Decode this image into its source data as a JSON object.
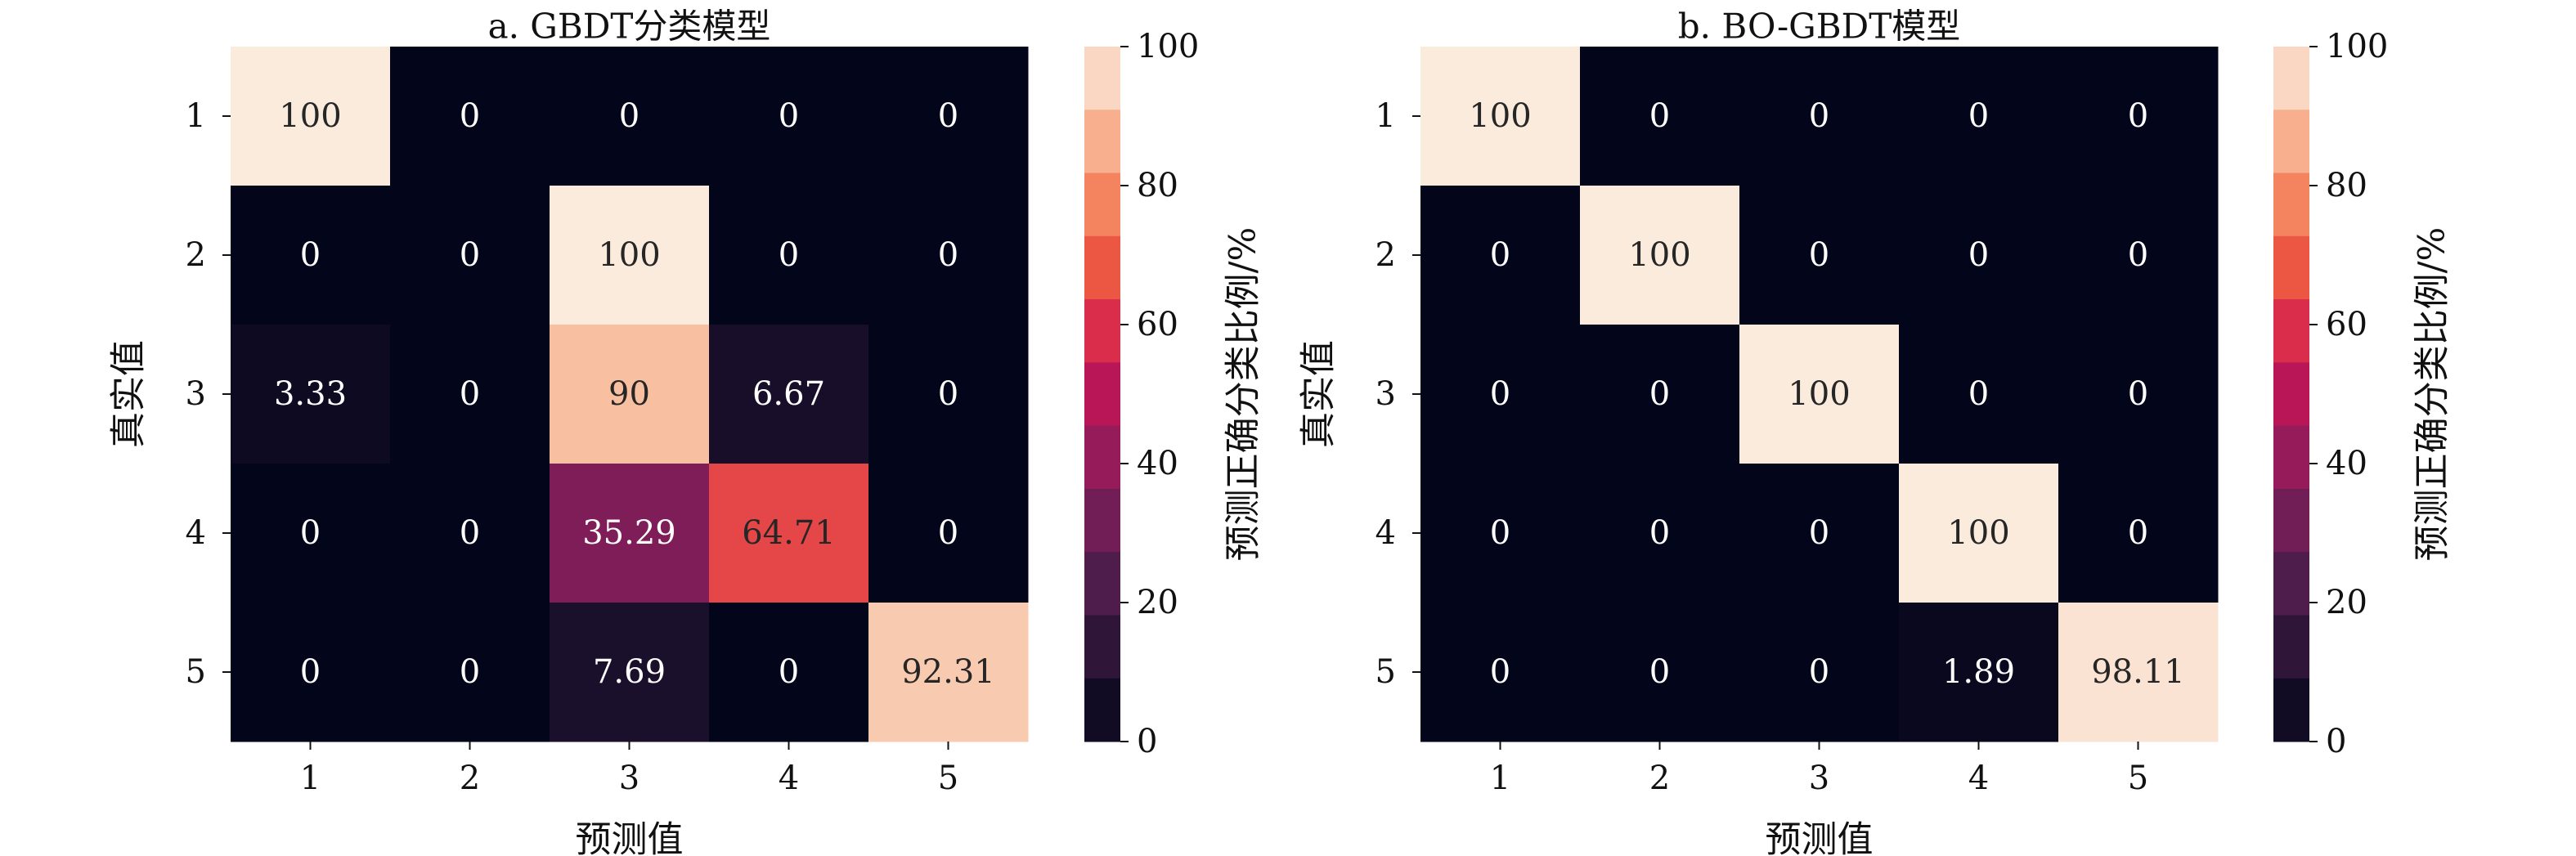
{
  "chart_data": [
    {
      "type": "heatmap",
      "title": "a. GBDT分类模型",
      "xlabel": "预测值",
      "ylabel": "真实值",
      "x_categories": [
        "1",
        "2",
        "3",
        "4",
        "5"
      ],
      "y_categories": [
        "1",
        "2",
        "3",
        "4",
        "5"
      ],
      "values": [
        [
          100,
          0,
          0,
          0,
          0
        ],
        [
          0,
          0,
          100,
          0,
          0
        ],
        [
          3.33,
          0,
          90,
          6.67,
          0
        ],
        [
          0,
          0,
          35.29,
          64.71,
          0
        ],
        [
          0,
          0,
          7.69,
          0,
          92.31
        ]
      ],
      "colorbar": {
        "label": "预测正确分类比例/%",
        "ticks": [
          0,
          20,
          40,
          60,
          80,
          100
        ],
        "range": [
          0,
          100
        ]
      }
    },
    {
      "type": "heatmap",
      "title": "b. BO-GBDT模型",
      "xlabel": "预测值",
      "ylabel": "真实值",
      "x_categories": [
        "1",
        "2",
        "3",
        "4",
        "5"
      ],
      "y_categories": [
        "1",
        "2",
        "3",
        "4",
        "5"
      ],
      "values": [
        [
          100,
          0,
          0,
          0,
          0
        ],
        [
          0,
          100,
          0,
          0,
          0
        ],
        [
          0,
          0,
          100,
          0,
          0
        ],
        [
          0,
          0,
          0,
          100,
          0
        ],
        [
          0,
          0,
          0,
          1.89,
          98.11
        ]
      ],
      "colorbar": {
        "label": "预测正确分类比例/%",
        "ticks": [
          0,
          20,
          40,
          60,
          80,
          100
        ],
        "range": [
          0,
          100
        ]
      }
    }
  ],
  "colormap": [
    "#03051a",
    "#221331",
    "#451c47",
    "#6a1f56",
    "#921c5b",
    "#b91657",
    "#dc2f4a",
    "#f06043",
    "#f6906a",
    "#f8c0a1",
    "#faebdd"
  ],
  "rounded_tick_marker": "-"
}
